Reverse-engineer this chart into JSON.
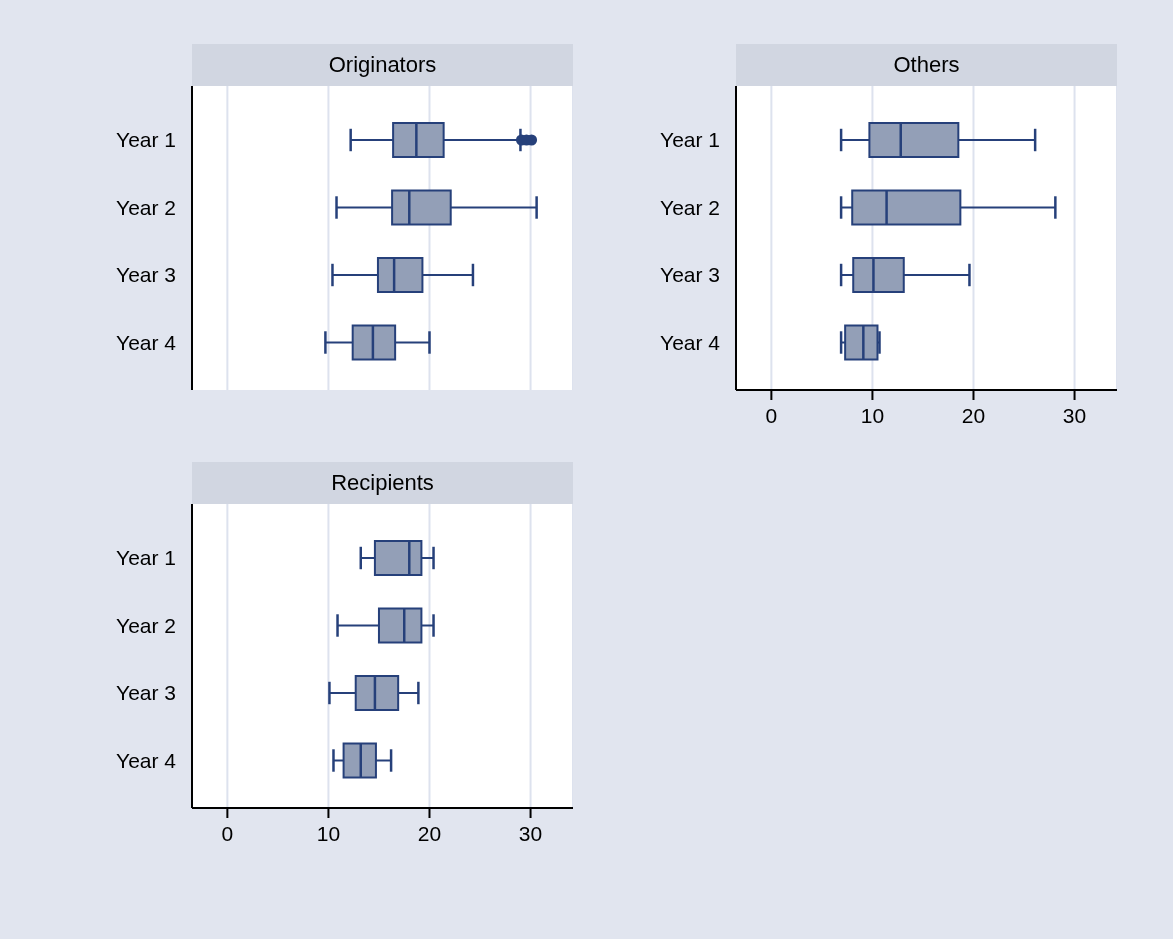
{
  "chart_data": [
    {
      "type": "box",
      "title": "Originators",
      "orientation": "horizontal",
      "categories": [
        "Year 1",
        "Year 2",
        "Year 3",
        "Year 4"
      ],
      "color": "#939fb7",
      "xlim": [
        -3.5,
        34.2
      ],
      "xticks": [
        0,
        10,
        20,
        30
      ],
      "grid": "x",
      "tick_labels": "y",
      "boxes": [
        {
          "low": 12.2,
          "q1": 16.4,
          "median": 18.7,
          "q3": 21.4,
          "high": 29.0,
          "outliers": [
            29.1,
            29.6,
            30.1
          ]
        },
        {
          "low": 10.8,
          "q1": 16.3,
          "median": 18.0,
          "q3": 22.1,
          "high": 30.6
        },
        {
          "low": 10.4,
          "q1": 14.9,
          "median": 16.5,
          "q3": 19.3,
          "high": 24.3
        },
        {
          "low": 9.7,
          "q1": 12.4,
          "median": 14.4,
          "q3": 16.6,
          "high": 20.0
        }
      ]
    },
    {
      "type": "box",
      "title": "Others",
      "orientation": "horizontal",
      "categories": [
        "Year 1",
        "Year 2",
        "Year 3",
        "Year 4"
      ],
      "color": "#939fb7",
      "xlim": [
        -3.5,
        34.2
      ],
      "xticks": [
        0,
        10,
        20,
        30
      ],
      "grid": "x",
      "boxes": [
        {
          "low": 6.9,
          "q1": 9.7,
          "median": 12.8,
          "q3": 18.5,
          "high": 26.1
        },
        {
          "low": 6.9,
          "q1": 8.0,
          "median": 11.4,
          "q3": 18.7,
          "high": 28.1
        },
        {
          "low": 6.9,
          "q1": 8.1,
          "median": 10.1,
          "q3": 13.1,
          "high": 19.6
        },
        {
          "low": 6.9,
          "q1": 7.3,
          "median": 9.1,
          "q3": 10.5,
          "high": 10.7
        }
      ]
    },
    {
      "type": "box",
      "title": "Recipients",
      "orientation": "horizontal",
      "categories": [
        "Year 1",
        "Year 2",
        "Year 3",
        "Year 4"
      ],
      "color": "#939fb7",
      "xlim": [
        -3.5,
        34.2
      ],
      "xticks": [
        0,
        10,
        20,
        30
      ],
      "grid": "x",
      "boxes": [
        {
          "low": 13.2,
          "q1": 14.6,
          "median": 18.0,
          "q3": 19.2,
          "high": 20.4
        },
        {
          "low": 10.9,
          "q1": 15.0,
          "median": 17.5,
          "q3": 19.2,
          "high": 20.4
        },
        {
          "low": 10.1,
          "q1": 12.7,
          "median": 14.6,
          "q3": 16.9,
          "high": 18.9
        },
        {
          "low": 10.5,
          "q1": 11.5,
          "median": 13.2,
          "q3": 14.7,
          "high": 16.2
        }
      ]
    }
  ]
}
